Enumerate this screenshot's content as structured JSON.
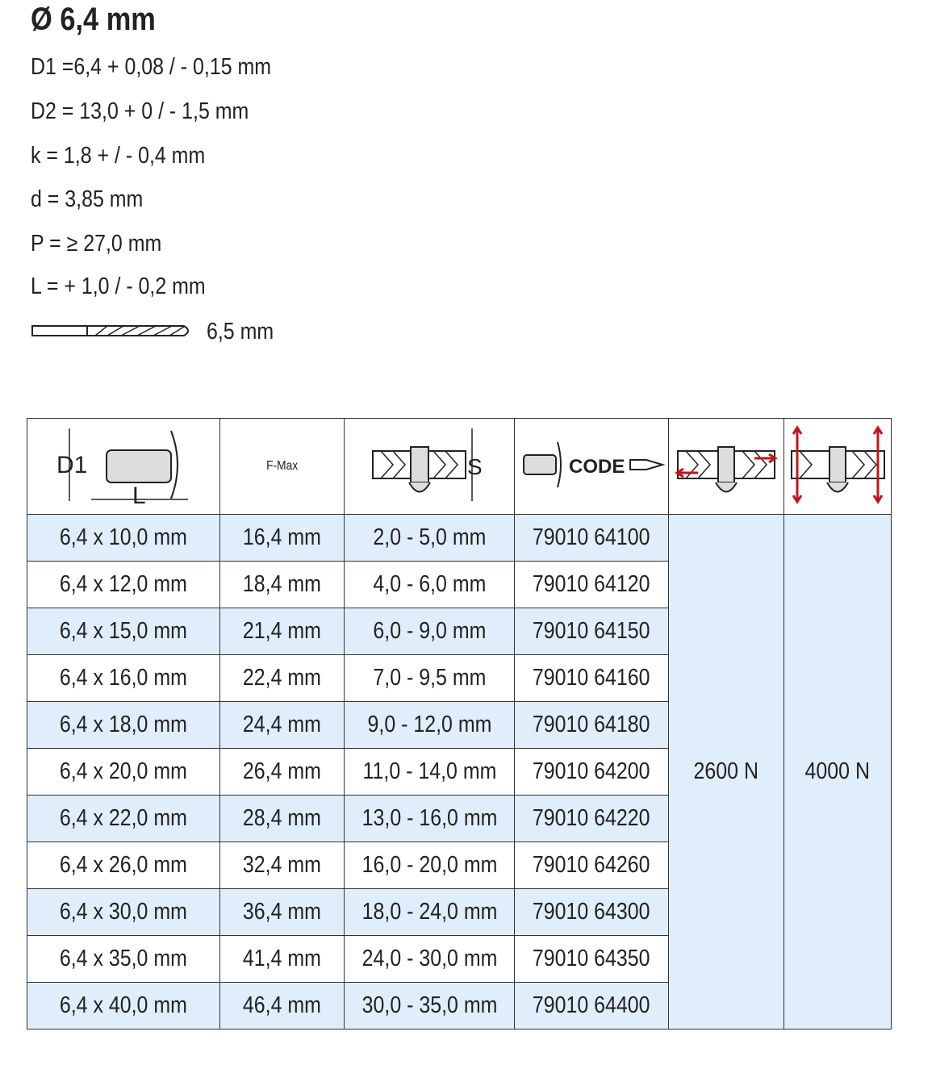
{
  "title": "Ø 6,4 mm",
  "specs": [
    "D1 =6,4 + 0,08 / - 0,15 mm",
    "D2 = 13,0 + 0 / - 1,5 mm",
    "k = 1,8 + / - 0,4 mm",
    "d = 3,85 mm",
    "P = ≥ 27,0 mm",
    "L = + 1,0 / - 0,2 mm"
  ],
  "drill": {
    "icon": "drill-bit-icon",
    "label": "6,5 mm"
  },
  "table": {
    "header": {
      "col1_icon": "rivet-dimension-icon",
      "col1_labels": [
        "D1",
        "L"
      ],
      "col2": "F-Max",
      "col3_icon": "grip-range-icon",
      "col3_label": "S",
      "col4_icon": "code-icon",
      "col4_label": "CODE",
      "col5_icon": "shear-force-icon",
      "col6_icon": "tensile-force-icon"
    },
    "accent_color": "#c0151b",
    "row_tint": "#dfeefa",
    "rows": [
      [
        "6,4 x 10,0 mm",
        "16,4 mm",
        "2,0 - 5,0 mm",
        "79010 64100"
      ],
      [
        "6,4 x 12,0 mm",
        "18,4 mm",
        "4,0 - 6,0 mm",
        "79010 64120"
      ],
      [
        "6,4 x 15,0 mm",
        "21,4 mm",
        "6,0 - 9,0 mm",
        "79010 64150"
      ],
      [
        "6,4 x 16,0 mm",
        "22,4 mm",
        "7,0 - 9,5 mm",
        "79010 64160"
      ],
      [
        "6,4 x 18,0 mm",
        "24,4 mm",
        "9,0 - 12,0 mm",
        "79010 64180"
      ],
      [
        "6,4 x 20,0 mm",
        "26,4 mm",
        "11,0 - 14,0 mm",
        "79010 64200"
      ],
      [
        "6,4 x 22,0 mm",
        "28,4 mm",
        "13,0 - 16,0 mm",
        "79010 64220"
      ],
      [
        "6,4 x 26,0 mm",
        "32,4 mm",
        "16,0 - 20,0 mm",
        "79010 64260"
      ],
      [
        "6,4 x 30,0 mm",
        "36,4 mm",
        "18,0 - 24,0 mm",
        "79010 64300"
      ],
      [
        "6,4 x 35,0 mm",
        "41,4 mm",
        "24,0 - 30,0 mm",
        "79010 64350"
      ],
      [
        "6,4 x 40,0 mm",
        "46,4 mm",
        "30,0 - 35,0 mm",
        "79010 64400"
      ]
    ],
    "shear_force": "2600 N",
    "tensile_force": "4000 N"
  }
}
